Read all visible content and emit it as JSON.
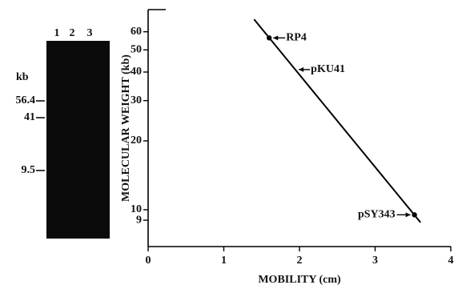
{
  "gel": {
    "lanes": [
      "1",
      "2",
      "3"
    ],
    "unit_label": "kb",
    "markers": [
      "56.4",
      "41",
      "9.5"
    ]
  },
  "chart_data": {
    "type": "scatter",
    "xlabel": "MOBILITY (cm)",
    "ylabel": "MOLECULAR WEIGHT (kb)",
    "xlim": [
      0,
      4
    ],
    "xticks": [
      0,
      1,
      2,
      3,
      4
    ],
    "ylim": [
      6.9,
      75
    ],
    "yticks": [
      9,
      10,
      20,
      30,
      40,
      50,
      60
    ],
    "log_y": true,
    "color": "#000000",
    "points": {
      "x": [
        1.6,
        3.52
      ],
      "values": [
        56.4,
        9.5
      ],
      "labels": [
        "RP4",
        "pSY343"
      ]
    },
    "fit_line": {
      "x": [
        1.4,
        3.6
      ],
      "values": [
        68,
        8.8
      ]
    },
    "annotations": [
      {
        "text": "pKU41",
        "x": 1.97,
        "y": 41
      }
    ]
  }
}
